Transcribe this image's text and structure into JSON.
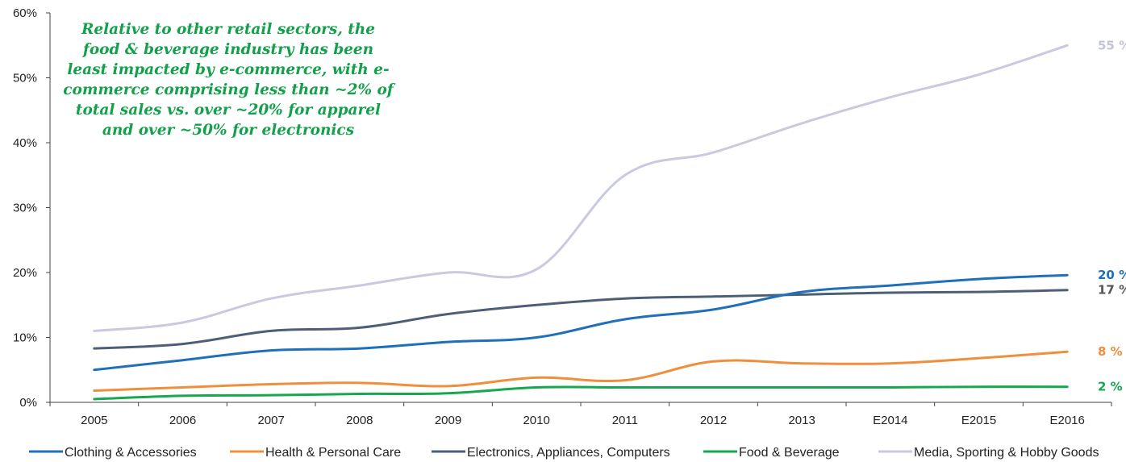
{
  "chart_data": {
    "type": "line",
    "categories": [
      "2005",
      "2006",
      "2007",
      "2008",
      "2009",
      "2010",
      "2011",
      "2012",
      "2013",
      "E2014",
      "E2015",
      "E2016"
    ],
    "ylim": [
      0,
      60
    ],
    "yticks": [
      0,
      10,
      20,
      30,
      40,
      50,
      60
    ],
    "ytick_labels": [
      "0%",
      "10%",
      "20%",
      "30%",
      "40%",
      "50%",
      "60%"
    ],
    "grid": false,
    "legend_position": "bottom",
    "annotation": "Relative to other retail sectors, the food & beverage industry has been least impacted by e-commerce, with e-commerce comprising less than ~2% of total sales vs. over ~20% for apparel and over ~50% for electronics",
    "series": [
      {
        "name": "Clothing & Accessories",
        "color": "#1f6fba",
        "end_label": "20 %",
        "values": [
          5,
          6.5,
          8,
          8.3,
          9.3,
          10,
          12.8,
          14.3,
          17,
          18,
          19,
          19.6
        ]
      },
      {
        "name": "Health & Personal Care",
        "color": "#ef8f3b",
        "end_label": "8 %",
        "values": [
          1.8,
          2.3,
          2.8,
          3,
          2.5,
          3.8,
          3.4,
          6.3,
          6,
          6,
          6.8,
          7.8
        ]
      },
      {
        "name": "Electronics, Appliances, Computers",
        "color": "#4d5f78",
        "end_label": "17 %",
        "values": [
          8.3,
          9,
          11,
          11.5,
          13.6,
          15,
          16,
          16.3,
          16.6,
          16.9,
          17,
          17.3
        ]
      },
      {
        "name": "Food & Beverage",
        "color": "#17a84e",
        "end_label": "2 %",
        "values": [
          0.5,
          1,
          1.1,
          1.3,
          1.4,
          2.3,
          2.3,
          2.3,
          2.3,
          2.3,
          2.4,
          2.4
        ]
      },
      {
        "name": "Media, Sporting & Hobby Goods",
        "color": "#c9c9df",
        "end_label": "55 %",
        "values": [
          11,
          12.3,
          16,
          18,
          20,
          20.5,
          35,
          38.5,
          43,
          47,
          50.5,
          55
        ]
      }
    ]
  }
}
